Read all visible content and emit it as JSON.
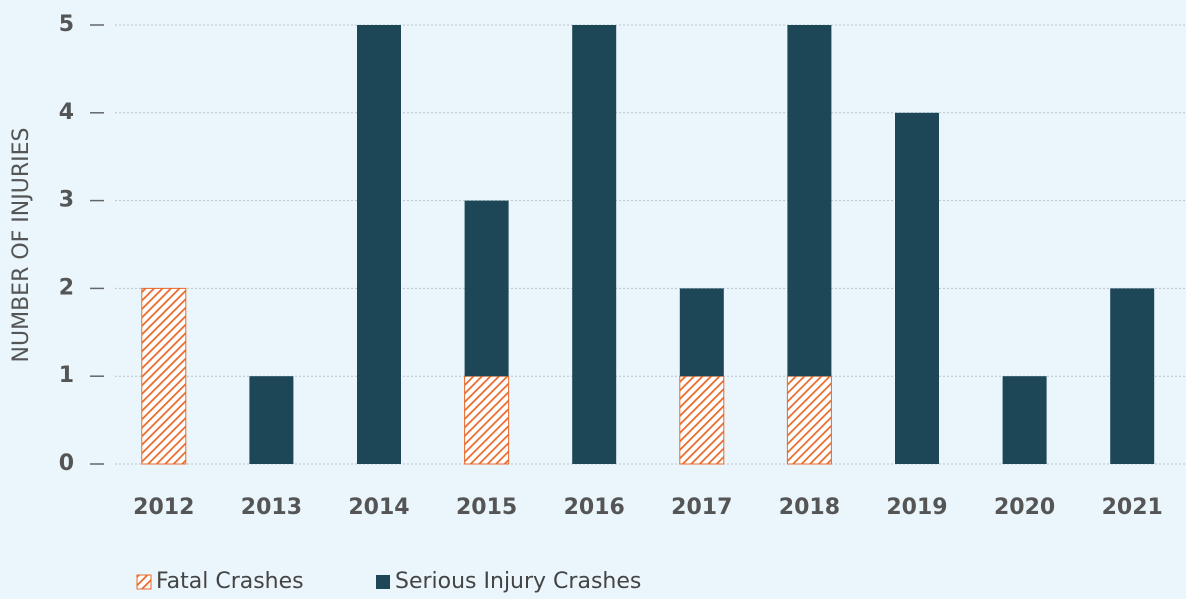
{
  "chart_data": {
    "type": "stacked_bar",
    "y_label": "NUMBER OF INJURIES",
    "categories": [
      "2012",
      "2013",
      "2014",
      "2015",
      "2016",
      "2017",
      "2018",
      "2019",
      "2020",
      "2021"
    ],
    "series": [
      {
        "name": "Fatal Crashes",
        "color": "#e8692a",
        "pattern": "hatch",
        "values": [
          2,
          0,
          0,
          1,
          0,
          1,
          1,
          0,
          0,
          0
        ]
      },
      {
        "name": "Serious Injury Crashes",
        "color": "#1d4657",
        "pattern": "solid",
        "values": [
          0,
          1,
          5,
          2,
          5,
          1,
          4,
          4,
          1,
          2
        ]
      }
    ],
    "ylim": [
      0,
      5
    ],
    "yticks": [
      0,
      1,
      2,
      3,
      4,
      5
    ],
    "grid": true,
    "legend": "bottom"
  }
}
